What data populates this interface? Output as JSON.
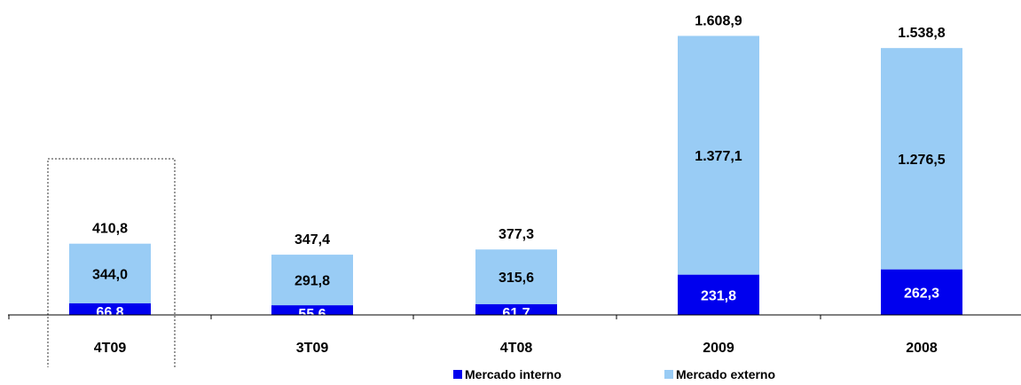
{
  "chart_data": {
    "type": "bar",
    "stacked": true,
    "categories": [
      "4T09",
      "3T09",
      "4T08",
      "2009",
      "2008"
    ],
    "series": [
      {
        "name": "Mercado interno",
        "color": "#0000EE",
        "values": [
          66.8,
          55.6,
          61.7,
          231.8,
          262.3
        ],
        "labels": [
          "66,8",
          "55,6",
          "61,7",
          "231,8",
          "262,3"
        ]
      },
      {
        "name": "Mercado externo",
        "color": "#99CCF5",
        "values": [
          344.0,
          291.8,
          315.6,
          1377.1,
          1276.5
        ],
        "labels": [
          "344,0",
          "291,8",
          "315,6",
          "1.377,1",
          "1.276,5"
        ]
      }
    ],
    "totals": [
      410.8,
      347.4,
      377.3,
      1608.9,
      1538.8
    ],
    "total_labels": [
      "410,8",
      "347,4",
      "377,3",
      "1.608,9",
      "1.538,8"
    ],
    "highlighted_category": "4T09",
    "ylim": [
      0,
      1690
    ],
    "grid": false,
    "legend_position": "bottom-center",
    "title": "",
    "xlabel": "",
    "ylabel": ""
  }
}
